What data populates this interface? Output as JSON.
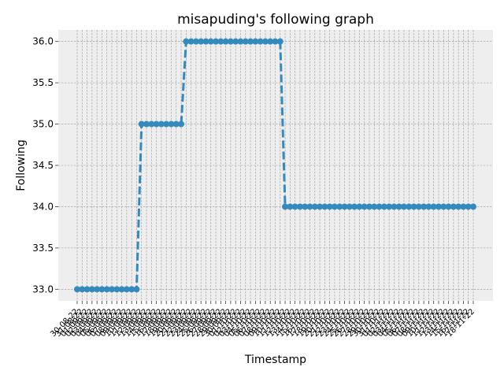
{
  "chart_data": {
    "type": "line",
    "title": "misapuding's following graph",
    "xlabel": "Timestamp",
    "ylabel": "Following",
    "ylim": [
      32.86,
      36.14
    ],
    "yticks": [
      33.0,
      33.5,
      34.0,
      34.5,
      35.0,
      35.5,
      36.0
    ],
    "ytick_labels": [
      "33.0",
      "33.5",
      "34.0",
      "34.5",
      "35.0",
      "35.5",
      "36.0"
    ],
    "grid": true,
    "line_style": "dashed",
    "marker": "circle",
    "series_color": "#348abd",
    "background_color": "#eeeeee",
    "grid_color": "#999999",
    "x": [
      "30-08-22",
      "31-08-22",
      "01-09-22",
      "02-09-22",
      "03-09-22",
      "04-09-22",
      "05-09-22",
      "06-09-22",
      "07-09-22",
      "08-09-22",
      "09-09-22",
      "10-09-22",
      "11-09-22",
      "12-09-22",
      "13-09-22",
      "14-09-22",
      "15-09-22",
      "16-09-22",
      "17-09-22",
      "18-09-22",
      "19-09-22",
      "20-09-22",
      "21-09-22",
      "22-09-22",
      "23-09-22",
      "24-09-22",
      "25-09-22",
      "26-09-22",
      "27-09-22",
      "28-09-22",
      "29-09-22",
      "30-09-22",
      "01-10-22",
      "02-10-22",
      "03-10-22",
      "04-10-22",
      "05-10-22",
      "06-10-22",
      "07-10-22",
      "08-10-22",
      "09-10-22",
      "10-10-22",
      "11-10-22",
      "12-10-22",
      "13-10-22",
      "14-10-22",
      "15-10-22",
      "16-10-22",
      "17-10-22",
      "18-10-22",
      "19-10-22",
      "20-10-22",
      "21-10-22",
      "22-10-22",
      "23-10-22",
      "24-10-22",
      "25-10-22",
      "26-10-22",
      "27-10-22",
      "28-10-22",
      "29-10-22",
      "30-10-22",
      "31-10-22",
      "01-11-22",
      "02-11-22",
      "03-11-22",
      "04-11-22",
      "05-11-22",
      "06-11-22",
      "07-11-22",
      "08-11-22",
      "09-11-22",
      "10-11-22",
      "11-11-22",
      "12-11-22",
      "13-11-22",
      "14-11-22",
      "15-11-22",
      "16-11-22",
      "17-11-22",
      "18-11-22"
    ],
    "series": [
      {
        "values": [
          33,
          33,
          33,
          33,
          33,
          33,
          33,
          33,
          33,
          33,
          33,
          33,
          33,
          35,
          35,
          35,
          35,
          35,
          35,
          35,
          35,
          35,
          36,
          36,
          36,
          36,
          36,
          36,
          36,
          36,
          36,
          36,
          36,
          36,
          36,
          36,
          36,
          36,
          36,
          36,
          36,
          36,
          34,
          34,
          34,
          34,
          34,
          34,
          34,
          34,
          34,
          34,
          34,
          34,
          34,
          34,
          34,
          34,
          34,
          34,
          34,
          34,
          34,
          34,
          34,
          34,
          34,
          34,
          34,
          34,
          34,
          34,
          34,
          34,
          34,
          34,
          34,
          34,
          34,
          34,
          34
        ]
      }
    ]
  }
}
